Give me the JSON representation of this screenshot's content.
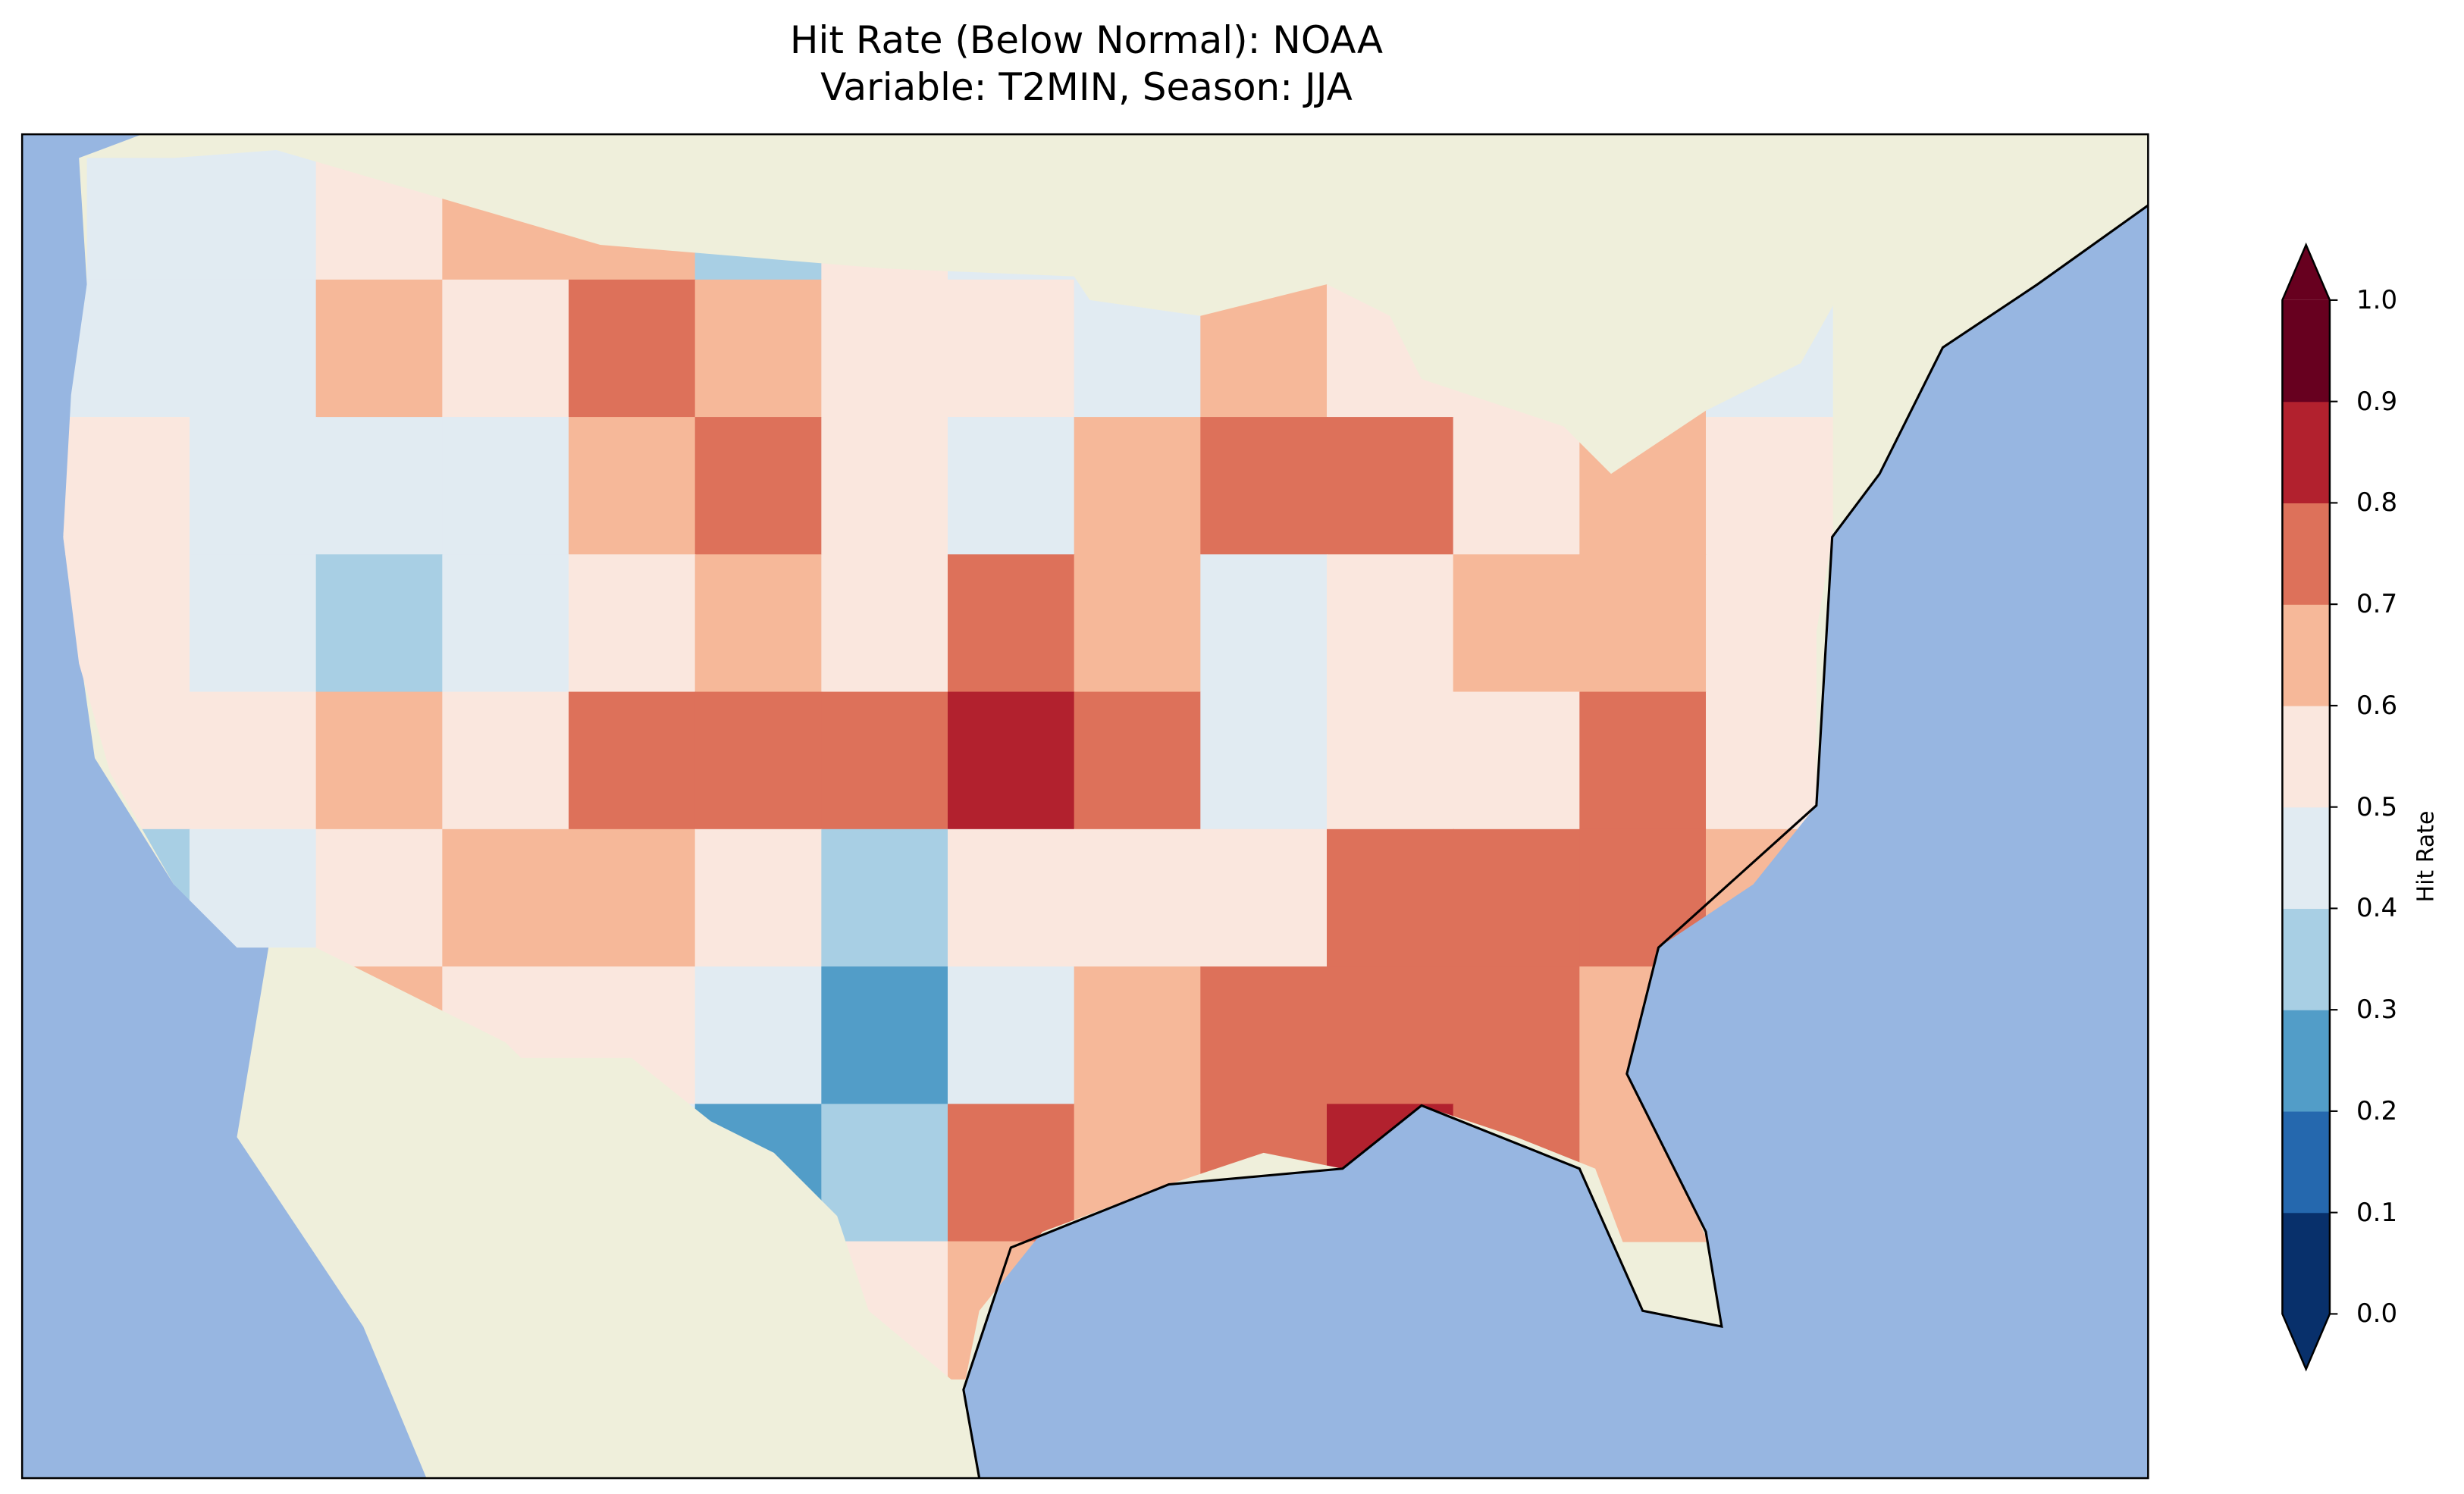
{
  "chart_data": {
    "type": "heatmap",
    "title": "Hit Rate (Below Normal): NOAA",
    "subtitle": "Variable: T2MIN, Season: JJA",
    "colorbar": {
      "label": "Hit Rate",
      "range": [
        0.0,
        1.0
      ],
      "ticks": [
        "0.0",
        "0.1",
        "0.2",
        "0.3",
        "0.4",
        "0.5",
        "0.6",
        "0.7",
        "0.8",
        "0.9",
        "1.0"
      ],
      "colors": [
        "#08306b",
        "#2568ae",
        "#529dc8",
        "#a8cfe4",
        "#e1ebf2",
        "#fae7de",
        "#f6b899",
        "#dd715a",
        "#b2212e",
        "#67001f"
      ],
      "extend": "both"
    },
    "grid_note_rows": "approximate coarse CONUS hit-rate field, west to east, north to south",
    "grid": [
      [
        0.45,
        0.45,
        0.5,
        0.6,
        0.65,
        0.35,
        0.5,
        0.4,
        0.45,
        0.5,
        null,
        null,
        0.55,
        0.25
      ],
      [
        0.45,
        0.45,
        0.65,
        0.55,
        0.75,
        0.6,
        0.55,
        0.55,
        0.45,
        0.65,
        0.5,
        0.5,
        0.65,
        0.45
      ],
      [
        0.55,
        0.45,
        0.45,
        0.4,
        0.65,
        0.75,
        0.55,
        0.45,
        0.6,
        0.7,
        0.7,
        0.5,
        0.6,
        0.55
      ],
      [
        0.55,
        0.45,
        0.35,
        0.45,
        0.55,
        0.6,
        0.55,
        0.75,
        0.6,
        0.45,
        0.55,
        0.65,
        0.6,
        0.55
      ],
      [
        0.5,
        0.55,
        0.6,
        0.55,
        0.75,
        0.7,
        0.7,
        0.85,
        0.7,
        0.45,
        0.55,
        0.55,
        0.7,
        0.55
      ],
      [
        0.3,
        0.4,
        0.55,
        0.6,
        0.6,
        0.5,
        0.35,
        0.55,
        0.55,
        0.5,
        0.75,
        0.7,
        0.7,
        0.6
      ],
      [
        0.3,
        0.55,
        0.65,
        0.55,
        0.5,
        0.45,
        0.25,
        0.45,
        0.65,
        0.7,
        0.75,
        0.7,
        0.6,
        0.6
      ],
      [
        null,
        null,
        0.5,
        0.5,
        0.45,
        0.25,
        0.3,
        0.7,
        0.65,
        0.75,
        0.85,
        0.7,
        0.65,
        null
      ],
      [
        null,
        null,
        null,
        null,
        null,
        0.5,
        0.55,
        0.6,
        null,
        null,
        0.75,
        0.85,
        null,
        null
      ]
    ],
    "map_colors": {
      "ocean": "#97b6e1",
      "land": "#efefdb"
    }
  }
}
